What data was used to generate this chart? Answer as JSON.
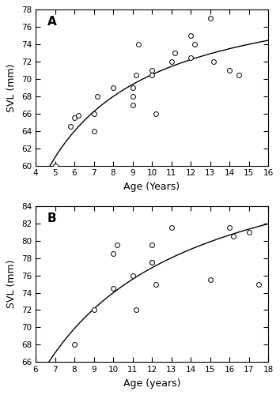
{
  "panel_A": {
    "label": "A",
    "scatter_x": [
      5,
      5.8,
      6.0,
      6.2,
      7.0,
      7.0,
      7.2,
      8.0,
      9.0,
      9.0,
      9.0,
      9.2,
      9.3,
      10.0,
      10.0,
      10.2,
      11.0,
      11.2,
      12.0,
      12.0,
      12.2,
      13.0,
      13.2,
      14.0,
      14.5
    ],
    "scatter_y": [
      60,
      64.5,
      65.5,
      65.8,
      64.0,
      66.0,
      68.0,
      69.0,
      69.0,
      67.0,
      68.0,
      70.5,
      74.0,
      70.5,
      71.0,
      66.0,
      72.0,
      73.0,
      72.5,
      75.0,
      74.0,
      77.0,
      72.0,
      71.0,
      70.5
    ],
    "fit_a": 4.4014,
    "fit_b": 1.4574,
    "xlim": [
      4,
      16
    ],
    "ylim": [
      60,
      78
    ],
    "xticks": [
      4,
      5,
      6,
      7,
      8,
      9,
      10,
      11,
      12,
      13,
      14,
      15,
      16
    ],
    "yticks": [
      60,
      62,
      64,
      66,
      68,
      70,
      72,
      74,
      76,
      78
    ],
    "xlabel": "Age (Years)",
    "ylabel": "SVL (mm)"
  },
  "panel_B": {
    "label": "B",
    "scatter_x": [
      8.0,
      9.0,
      10.0,
      10.0,
      10.2,
      11.0,
      11.2,
      12.0,
      12.0,
      12.0,
      12.2,
      13.0,
      15.0,
      16.0,
      16.2,
      17.0,
      17.5
    ],
    "scatter_y": [
      68.0,
      72.0,
      74.5,
      78.5,
      79.5,
      76.0,
      72.0,
      77.5,
      77.5,
      79.5,
      75.0,
      81.5,
      75.5,
      81.5,
      80.5,
      81.0,
      75.0
    ],
    "fit_a": 4.534,
    "fit_b": 2.3004,
    "xlim": [
      6,
      18
    ],
    "ylim": [
      66,
      84
    ],
    "xticks": [
      6,
      7,
      8,
      9,
      10,
      11,
      12,
      13,
      14,
      15,
      16,
      17,
      18
    ],
    "yticks": [
      66,
      68,
      70,
      72,
      74,
      76,
      78,
      80,
      82,
      84
    ],
    "xlabel": "Age (years)",
    "ylabel": "SVL (mm)"
  },
  "marker_size": 18,
  "marker_color": "white",
  "marker_edgecolor": "black",
  "marker_linewidth": 0.7,
  "line_color": "black",
  "line_width": 1.0,
  "background_color": "white",
  "label_fontsize": 9,
  "tick_fontsize": 7.5,
  "panel_label_fontsize": 11
}
